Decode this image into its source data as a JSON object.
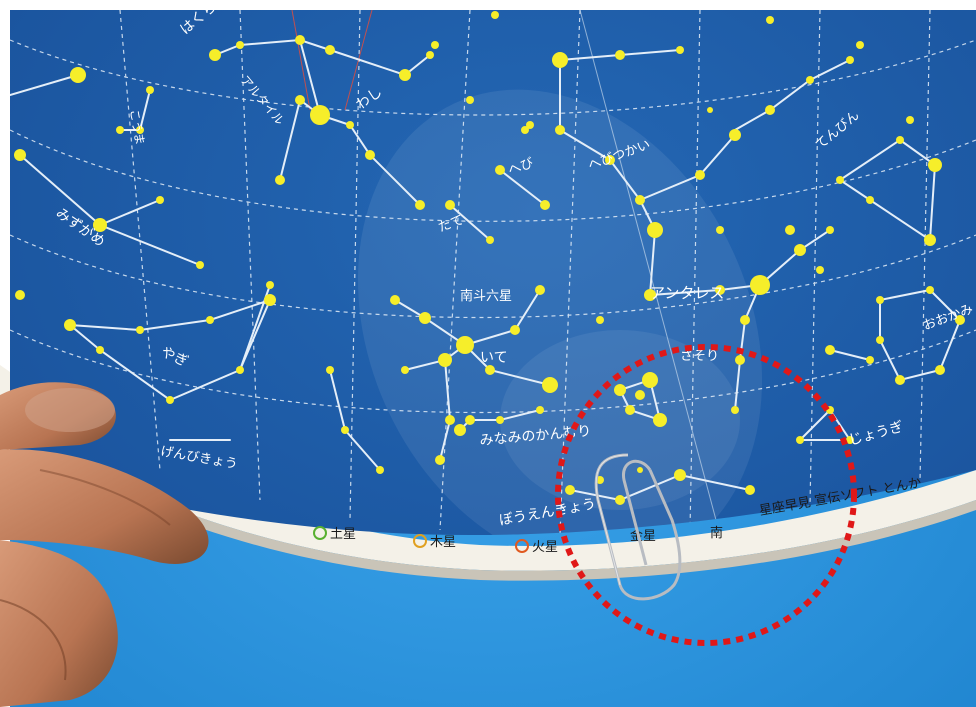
{
  "constellation_labels": [
    "はくちょう",
    "わし",
    "アルタイル",
    "こうま",
    "みずがめ",
    "やぎ",
    "げんびきょう",
    "南斗六星",
    "いて",
    "みなみのかんむり",
    "ぼうえんきょう",
    "たて",
    "へび",
    "へびつかい",
    "アンタレス",
    "さそり",
    "てんびん",
    "おおかみ",
    "じょうぎ"
  ],
  "planet_labels": [
    "土星",
    "木星",
    "火星",
    "金星"
  ],
  "rim_direction": "南",
  "rim_brand": "星座早見 宣伝ソフト とんか",
  "colors": {
    "sky": "#2a8fd8",
    "chart": "#1d5ba8",
    "stars": "#f6ee2a",
    "lines": "#e4eef8",
    "highlight": "#e01818",
    "rim": "#f4f1e8"
  },
  "icons": [
    "paperclip-icon",
    "finger-icon"
  ]
}
